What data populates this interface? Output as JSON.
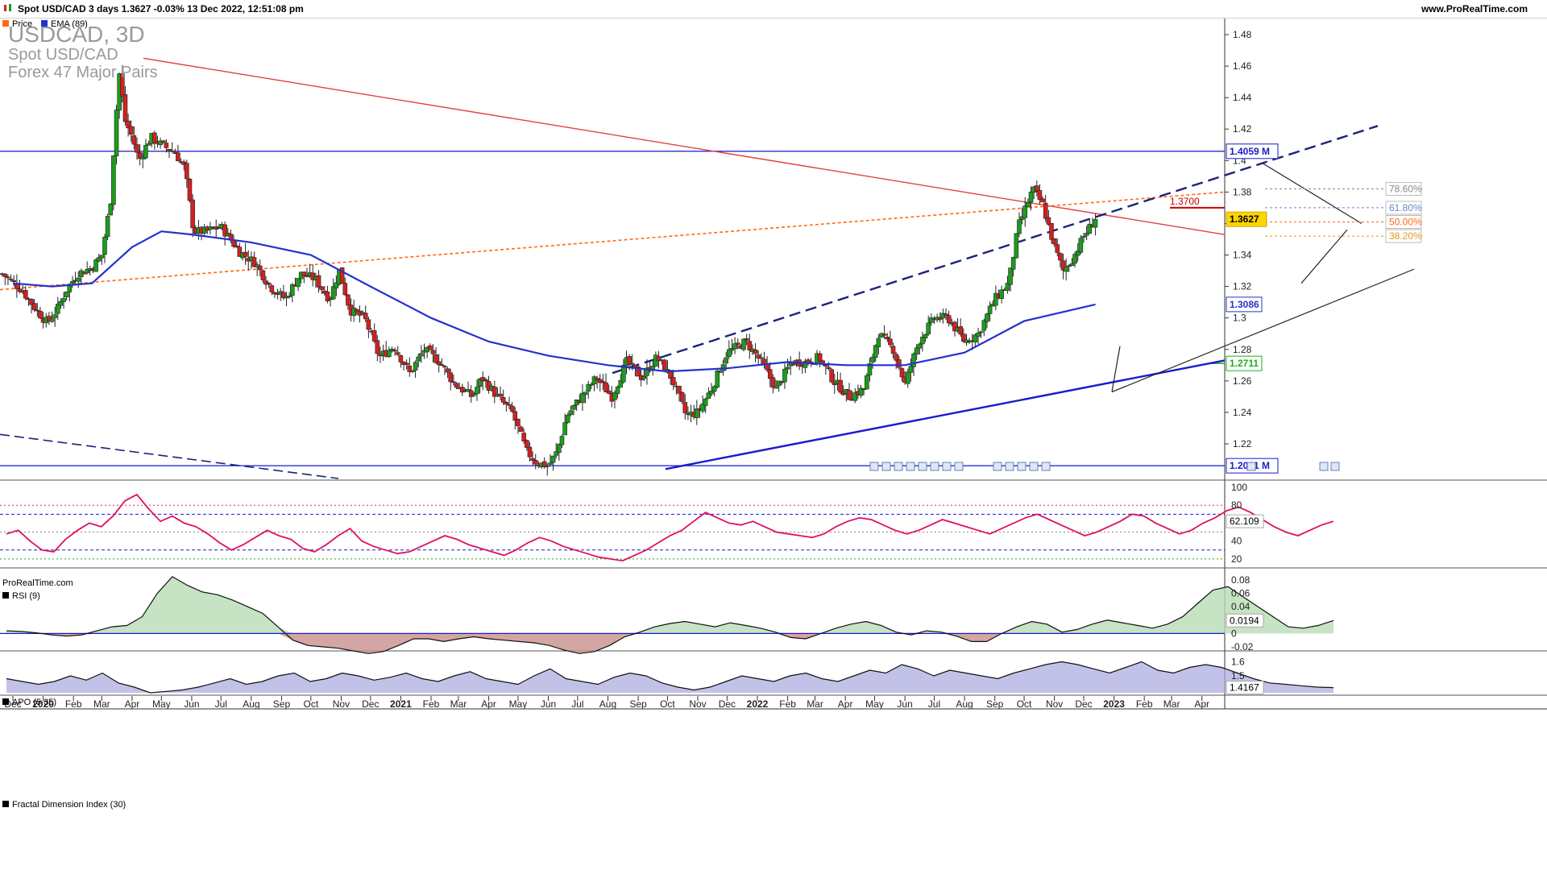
{
  "header": {
    "title": "Spot USD/CAD 3 days 1.3627 -0.03% 13 Dec 2022, 12:51:08 pm",
    "site": "www.ProRealTime.com"
  },
  "overlay": {
    "symbol": "USDCAD, 3D",
    "name": "Spot USD/CAD",
    "market": "Forex 47 Major Pairs",
    "watermark": "ProRealTime.com"
  },
  "legend": {
    "price": "Price",
    "ema": "EMA (89)",
    "rsi": "RSI (9)",
    "apo": "APO (5 35)",
    "fdi": "Fractal Dimension Index (30)"
  },
  "colors": {
    "up": "#1a9e1a",
    "down": "#d42020",
    "ema": "#2233cc",
    "resistance": "#e04040",
    "trend_dashed": "#1a237e",
    "orange": "#ff6a13",
    "rsi": "#e0105e",
    "apo_pos": "#b8dcb4",
    "apo_neg": "#c9908c",
    "fdi_fill": "#a8a8e0",
    "level_blue": "#1a1acc",
    "green_level": "#22aa22"
  },
  "chart_data": [
    {
      "type": "candlestick",
      "title": "USDCAD, 3D",
      "timeframe": "3 days",
      "last": "1.3627",
      "change": "-0.03%",
      "y_ticks": [
        "1.48",
        "1.46",
        "1.44",
        "1.42",
        "1.4",
        "1.38",
        "1.36",
        "1.34",
        "1.32",
        "1.3",
        "1.28",
        "1.26",
        "1.24",
        "1.22"
      ],
      "ylim": [
        1.196,
        1.487
      ],
      "x_labels": [
        "Dec",
        "2020",
        "Feb",
        "Mar",
        "Apr",
        "May",
        "Jun",
        "Jul",
        "Aug",
        "Sep",
        "Oct",
        "Nov",
        "Dec",
        "2021",
        "Feb",
        "Mar",
        "Apr",
        "May",
        "Jun",
        "Jul",
        "Aug",
        "Sep",
        "Oct",
        "Nov",
        "Dec",
        "2022",
        "Feb",
        "Mar",
        "Apr",
        "May",
        "Jun",
        "Jul",
        "Aug",
        "Sep",
        "Oct",
        "Nov",
        "Dec",
        "2023",
        "Feb",
        "Mar",
        "Apr"
      ],
      "close_path": [
        [
          "2019-11-20",
          1.328
        ],
        [
          "2019-12-10",
          1.318
        ],
        [
          "2019-12-25",
          1.305
        ],
        [
          "2020-01-05",
          1.297
        ],
        [
          "2020-01-15",
          1.305
        ],
        [
          "2020-01-25",
          1.318
        ],
        [
          "2020-02-05",
          1.328
        ],
        [
          "2020-02-20",
          1.332
        ],
        [
          "2020-03-01",
          1.34
        ],
        [
          "2020-03-10",
          1.375
        ],
        [
          "2020-03-15",
          1.425
        ],
        [
          "2020-03-19",
          1.455
        ],
        [
          "2020-03-25",
          1.425
        ],
        [
          "2020-04-01",
          1.415
        ],
        [
          "2020-04-08",
          1.4
        ],
        [
          "2020-04-20",
          1.415
        ],
        [
          "2020-05-01",
          1.41
        ],
        [
          "2020-05-15",
          1.405
        ],
        [
          "2020-05-25",
          1.395
        ],
        [
          "2020-06-03",
          1.355
        ],
        [
          "2020-06-15",
          1.355
        ],
        [
          "2020-07-01",
          1.358
        ],
        [
          "2020-07-20",
          1.342
        ],
        [
          "2020-08-05",
          1.335
        ],
        [
          "2020-08-20",
          1.32
        ],
        [
          "2020-09-05",
          1.312
        ],
        [
          "2020-09-20",
          1.328
        ],
        [
          "2020-10-05",
          1.325
        ],
        [
          "2020-10-20",
          1.312
        ],
        [
          "2020-10-30",
          1.33
        ],
        [
          "2020-11-10",
          1.305
        ],
        [
          "2020-11-25",
          1.3
        ],
        [
          "2020-12-10",
          1.275
        ],
        [
          "2020-12-25",
          1.282
        ],
        [
          "2021-01-10",
          1.265
        ],
        [
          "2021-01-25",
          1.28
        ],
        [
          "2021-02-10",
          1.272
        ],
        [
          "2021-02-25",
          1.258
        ],
        [
          "2021-03-15",
          1.25
        ],
        [
          "2021-03-25",
          1.262
        ],
        [
          "2021-04-10",
          1.25
        ],
        [
          "2021-04-25",
          1.24
        ],
        [
          "2021-05-10",
          1.215
        ],
        [
          "2021-05-20",
          1.208
        ],
        [
          "2021-06-01",
          1.206
        ],
        [
          "2021-06-10",
          1.215
        ],
        [
          "2021-06-20",
          1.238
        ],
        [
          "2021-07-05",
          1.25
        ],
        [
          "2021-07-20",
          1.262
        ],
        [
          "2021-08-05",
          1.25
        ],
        [
          "2021-08-20",
          1.272
        ],
        [
          "2021-09-05",
          1.262
        ],
        [
          "2021-09-20",
          1.275
        ],
        [
          "2021-10-05",
          1.262
        ],
        [
          "2021-10-20",
          1.238
        ],
        [
          "2021-11-01",
          1.24
        ],
        [
          "2021-11-15",
          1.255
        ],
        [
          "2021-12-01",
          1.278
        ],
        [
          "2021-12-20",
          1.285
        ],
        [
          "2022-01-05",
          1.272
        ],
        [
          "2022-01-20",
          1.255
        ],
        [
          "2022-02-05",
          1.272
        ],
        [
          "2022-02-20",
          1.272
        ],
        [
          "2022-03-05",
          1.275
        ],
        [
          "2022-03-20",
          1.26
        ],
        [
          "2022-04-05",
          1.25
        ],
        [
          "2022-04-20",
          1.255
        ],
        [
          "2022-05-05",
          1.29
        ],
        [
          "2022-05-20",
          1.28
        ],
        [
          "2022-06-01",
          1.258
        ],
        [
          "2022-06-15",
          1.285
        ],
        [
          "2022-07-01",
          1.3
        ],
        [
          "2022-07-15",
          1.3
        ],
        [
          "2022-08-01",
          1.285
        ],
        [
          "2022-08-15",
          1.29
        ],
        [
          "2022-09-01",
          1.312
        ],
        [
          "2022-09-15",
          1.322
        ],
        [
          "2022-09-25",
          1.358
        ],
        [
          "2022-10-10",
          1.382
        ],
        [
          "2022-10-20",
          1.372
        ],
        [
          "2022-11-01",
          1.345
        ],
        [
          "2022-11-10",
          1.33
        ],
        [
          "2022-11-20",
          1.338
        ],
        [
          "2022-12-01",
          1.352
        ],
        [
          "2022-12-13",
          1.3627
        ]
      ],
      "ema_89": [
        [
          "2019-12-01",
          1.322
        ],
        [
          "2020-01-10",
          1.32
        ],
        [
          "2020-02-20",
          1.322
        ],
        [
          "2020-04-01",
          1.345
        ],
        [
          "2020-05-01",
          1.355
        ],
        [
          "2020-06-01",
          1.353
        ],
        [
          "2020-08-01",
          1.348
        ],
        [
          "2020-10-01",
          1.34
        ],
        [
          "2020-12-01",
          1.32
        ],
        [
          "2021-02-01",
          1.3
        ],
        [
          "2021-04-01",
          1.285
        ],
        [
          "2021-06-01",
          1.276
        ],
        [
          "2021-08-01",
          1.27
        ],
        [
          "2021-10-01",
          1.266
        ],
        [
          "2021-12-01",
          1.268
        ],
        [
          "2022-02-01",
          1.272
        ],
        [
          "2022-04-01",
          1.27
        ],
        [
          "2022-06-01",
          1.27
        ],
        [
          "2022-08-01",
          1.278
        ],
        [
          "2022-10-01",
          1.298
        ],
        [
          "2022-12-13",
          1.3086
        ]
      ],
      "levels": [
        {
          "label": "1.4059 M",
          "value": 1.4059
        },
        {
          "label": "1.2061 M",
          "value": 1.2061
        },
        {
          "label": "1.3700",
          "value": 1.37
        },
        {
          "label": "1.2711",
          "value": 1.2711
        },
        {
          "label": "1.3086",
          "value": 1.3086
        }
      ],
      "fibonacci": [
        {
          "label": "78.60%",
          "value": 1.382
        },
        {
          "label": "61.80%",
          "value": 1.37
        },
        {
          "label": "50.00%",
          "value": 1.361
        },
        {
          "label": "38.20%",
          "value": 1.352
        }
      ]
    },
    {
      "type": "line",
      "title": "RSI (9)",
      "ylim": [
        10,
        100
      ],
      "y_ticks": [
        "100",
        "80",
        "60",
        "40",
        "20"
      ],
      "last_label": "62.109",
      "values": [
        48,
        52,
        40,
        30,
        28,
        42,
        52,
        60,
        56,
        68,
        85,
        92,
        76,
        62,
        68,
        60,
        56,
        48,
        38,
        30,
        36,
        44,
        52,
        46,
        42,
        32,
        28,
        36,
        46,
        54,
        40,
        34,
        30,
        26,
        28,
        34,
        40,
        46,
        42,
        36,
        32,
        28,
        24,
        30,
        38,
        44,
        40,
        34,
        30,
        26,
        22,
        20,
        18,
        24,
        30,
        38,
        46,
        52,
        62,
        72,
        66,
        60,
        58,
        62,
        56,
        50,
        48,
        46,
        44,
        48,
        56,
        62,
        66,
        64,
        58,
        52,
        48,
        52,
        58,
        64,
        60,
        56,
        52,
        48,
        54,
        60,
        66,
        70,
        64,
        58,
        52,
        46,
        50,
        56,
        62,
        70,
        68,
        60,
        54,
        48,
        52,
        60,
        66,
        74,
        78,
        72,
        64,
        56,
        50,
        46,
        52,
        58,
        62
      ],
      "reference_lines": [
        80,
        70,
        50,
        30,
        20
      ]
    },
    {
      "type": "area",
      "title": "APO (5 35)",
      "ylim": [
        -0.03,
        0.09
      ],
      "y_ticks": [
        "0.08",
        "0.06",
        "0.04",
        "0.02",
        "0",
        "-0.02"
      ],
      "last_label": "0.0194",
      "values": [
        0.004,
        0.003,
        0.001,
        -0.002,
        -0.004,
        -0.002,
        0.004,
        0.01,
        0.012,
        0.025,
        0.06,
        0.085,
        0.072,
        0.062,
        0.058,
        0.05,
        0.04,
        0.03,
        0.01,
        -0.01,
        -0.018,
        -0.02,
        -0.022,
        -0.026,
        -0.03,
        -0.027,
        -0.018,
        -0.008,
        -0.008,
        -0.012,
        -0.008,
        -0.005,
        -0.008,
        -0.01,
        -0.012,
        -0.014,
        -0.018,
        -0.025,
        -0.03,
        -0.027,
        -0.018,
        -0.005,
        0.002,
        0.01,
        0.015,
        0.018,
        0.014,
        0.01,
        0.016,
        0.012,
        0.008,
        0.002,
        -0.006,
        -0.008,
        0.0,
        0.008,
        0.014,
        0.018,
        0.012,
        0.002,
        -0.002,
        0.004,
        0.002,
        -0.004,
        -0.012,
        -0.012,
        0.0,
        0.01,
        0.018,
        0.014,
        0.002,
        0.006,
        0.014,
        0.02,
        0.016,
        0.012,
        0.008,
        0.014,
        0.025,
        0.045,
        0.065,
        0.07,
        0.055,
        0.04,
        0.025,
        0.01,
        0.008,
        0.012,
        0.0194
      ]
    },
    {
      "type": "area",
      "title": "Fractal Dimension Index (30)",
      "ylim": [
        1.38,
        1.65
      ],
      "y_ticks": [
        "1.6",
        "1.5",
        "1.4"
      ],
      "last_label": "1.4167",
      "values": [
        1.48,
        1.46,
        1.44,
        1.46,
        1.5,
        1.47,
        1.52,
        1.45,
        1.42,
        1.38,
        1.39,
        1.4,
        1.42,
        1.45,
        1.48,
        1.44,
        1.46,
        1.5,
        1.52,
        1.46,
        1.48,
        1.52,
        1.5,
        1.47,
        1.49,
        1.52,
        1.48,
        1.46,
        1.5,
        1.53,
        1.48,
        1.46,
        1.44,
        1.5,
        1.55,
        1.48,
        1.46,
        1.44,
        1.49,
        1.52,
        1.5,
        1.45,
        1.42,
        1.4,
        1.42,
        1.46,
        1.5,
        1.48,
        1.46,
        1.5,
        1.52,
        1.48,
        1.46,
        1.5,
        1.54,
        1.52,
        1.58,
        1.55,
        1.5,
        1.54,
        1.52,
        1.5,
        1.48,
        1.52,
        1.55,
        1.58,
        1.6,
        1.58,
        1.55,
        1.52,
        1.56,
        1.6,
        1.54,
        1.52,
        1.56,
        1.58,
        1.56,
        1.52,
        1.48,
        1.45,
        1.44,
        1.43,
        1.42,
        1.4167
      ]
    }
  ]
}
